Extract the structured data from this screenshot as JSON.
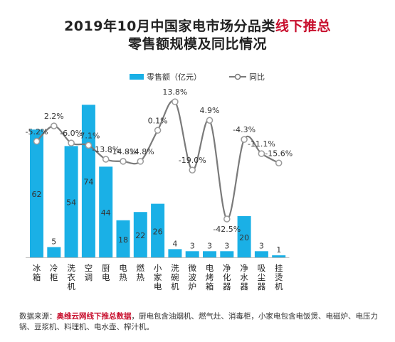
{
  "chart_data": {
    "type": "bar",
    "title_main": "2019年10月中国家电市场分品类",
    "title_highlight": "线下推总",
    "subtitle": "零售额规模及同比情况",
    "categories": [
      "冰箱",
      "冷柜",
      "洗衣机",
      "空调",
      "厨电",
      "电热",
      "燃热",
      "小家电",
      "洗碗机",
      "微波炉",
      "电烤箱",
      "净化器",
      "净水器",
      "吸尘器",
      "挂烫机"
    ],
    "series": [
      {
        "name": "零售额（亿元）",
        "type": "bar",
        "values": [
          62,
          5,
          54,
          74,
          44,
          18,
          22,
          26,
          4,
          3,
          3,
          3,
          20,
          3,
          1
        ]
      },
      {
        "name": "同比",
        "type": "line",
        "values": [
          -5.2,
          2.2,
          -6.0,
          -7.1,
          -13.8,
          -14.8,
          -14.8,
          0.1,
          13.8,
          -19.0,
          4.9,
          -42.5,
          -4.3,
          -11.1,
          -15.6
        ]
      }
    ],
    "line_labels": [
      "-5.2%",
      "2.2%",
      "-6.0%",
      "-7.1%",
      "-13.8%",
      "-14.8%",
      "-14.8%",
      "0.1%",
      "13.8%",
      "-19.0%",
      "4.9%",
      "-42.5%",
      "-4.3%",
      "-11.1%",
      "-15.6%"
    ],
    "ylim_bar": [
      0,
      80
    ],
    "ylim_line": [
      -50,
      20
    ],
    "legend_position": "top",
    "grid": false,
    "colors": {
      "bar": "#1ab0e6",
      "line": "#7a7a7a",
      "marker_fill": "#ffffff",
      "bar_label": "#333333",
      "line_label": "#333333"
    }
  },
  "source": {
    "label": "数据来源：",
    "highlight": "奥维云网线下推总数据",
    "detail": "，厨电包含油烟机、燃气灶、消毒柜，小家电包含电饭煲、电磁炉、电压力锅、豆浆机、料理机、电水壶、榨汁机。"
  }
}
